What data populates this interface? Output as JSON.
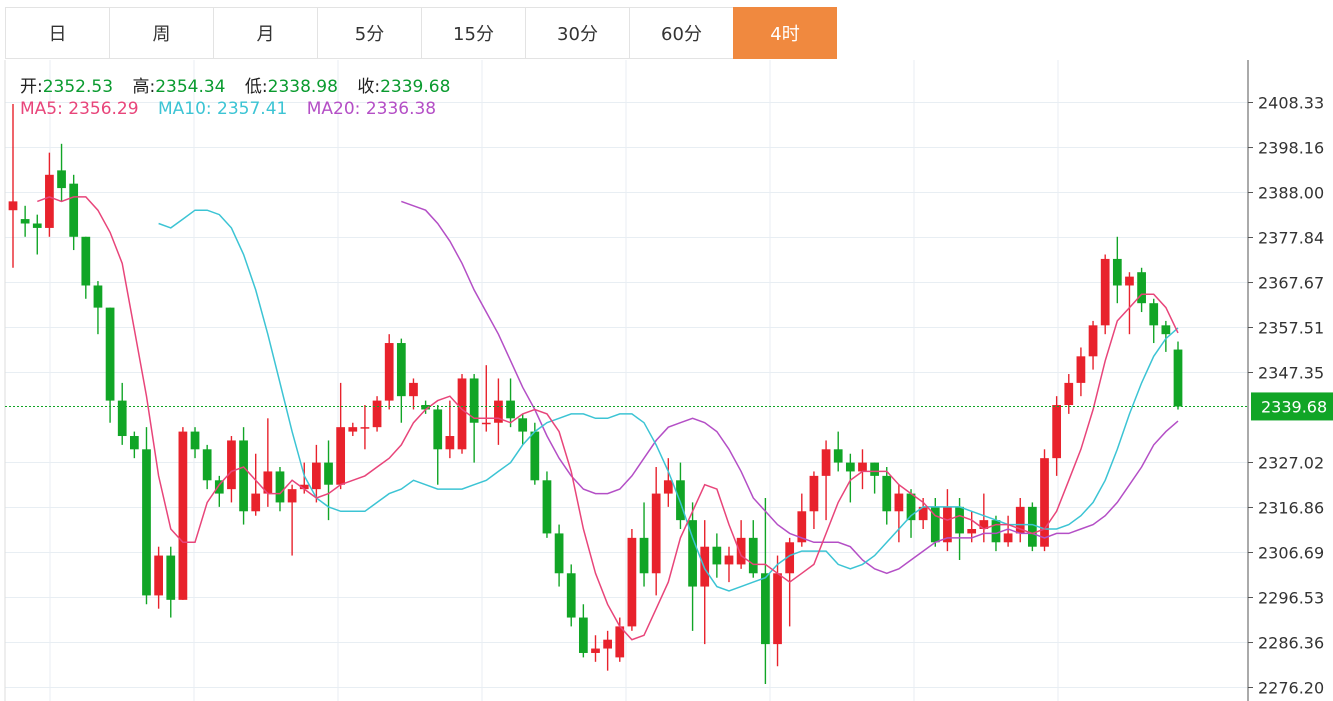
{
  "tabs": [
    {
      "label": "日"
    },
    {
      "label": "周"
    },
    {
      "label": "月"
    },
    {
      "label": "5分"
    },
    {
      "label": "15分"
    },
    {
      "label": "30分"
    },
    {
      "label": "60分"
    },
    {
      "label": "4时",
      "active": true
    }
  ],
  "info": {
    "open_label": "开:",
    "open": "2352.53",
    "high_label": "高:",
    "high": "2354.34",
    "low_label": "低:",
    "low": "2338.98",
    "close_label": "收:",
    "close": "2339.68",
    "ma5_label": "MA5:",
    "ma5": "2356.29",
    "ma10_label": "MA10:",
    "ma10": "2357.41",
    "ma20_label": "MA20:",
    "ma20": "2336.38"
  },
  "colors": {
    "up": "#e8222c",
    "down": "#11a526",
    "ma5": "#e8457a",
    "ma10": "#3cc4d4",
    "ma20": "#b44fc6",
    "accent": "#f0893f",
    "price_label_bg": "#11a526"
  },
  "chart_data": {
    "type": "candlestick",
    "y_ticks": [
      "2408.33",
      "2398.16",
      "2388.00",
      "2377.84",
      "2367.67",
      "2357.51",
      "2347.35",
      "2327.02",
      "2316.86",
      "2306.69",
      "2296.53",
      "2286.36",
      "2276.20"
    ],
    "ylim": [
      2276.2,
      2408.33
    ],
    "last_price": "2339.68",
    "candles": [
      [
        2384.0,
        2386.0,
        2408.0,
        2371.0
      ],
      [
        2382.0,
        2381.0,
        2385.0,
        2378.0
      ],
      [
        2381.0,
        2380.0,
        2383.0,
        2374.0
      ],
      [
        2380.0,
        2392.0,
        2397.0,
        2378.0
      ],
      [
        2393.0,
        2389.0,
        2399.0,
        2386.0
      ],
      [
        2390.0,
        2378.0,
        2392.0,
        2375.0
      ],
      [
        2378.0,
        2367.0,
        2378.0,
        2364.0
      ],
      [
        2367.0,
        2362.0,
        2368.0,
        2356.0
      ],
      [
        2362.0,
        2341.0,
        2362.0,
        2336.0
      ],
      [
        2341.0,
        2333.0,
        2345.0,
        2331.0
      ],
      [
        2333.0,
        2330.0,
        2334.0,
        2328.0
      ],
      [
        2330.0,
        2297.0,
        2335.0,
        2295.0
      ],
      [
        2297.0,
        2306.0,
        2308.0,
        2294.0
      ],
      [
        2306.0,
        2296.0,
        2308.0,
        2292.0
      ],
      [
        2296.0,
        2334.0,
        2335.0,
        2296.0
      ],
      [
        2334.0,
        2330.0,
        2335.0,
        2328.0
      ],
      [
        2330.0,
        2323.0,
        2331.0,
        2321.0
      ],
      [
        2323.0,
        2320.0,
        2324.0,
        2317.0
      ],
      [
        2321.0,
        2332.0,
        2333.0,
        2318.0
      ],
      [
        2332.0,
        2316.0,
        2335.0,
        2313.0
      ],
      [
        2316.0,
        2320.0,
        2329.0,
        2315.0
      ],
      [
        2320.0,
        2325.0,
        2337.0,
        2317.0
      ],
      [
        2325.0,
        2318.0,
        2326.0,
        2316.0
      ],
      [
        2318.0,
        2321.0,
        2322.0,
        2306.0
      ],
      [
        2321.0,
        2322.0,
        2327.0,
        2320.0
      ],
      [
        2321.0,
        2327.0,
        2331.0,
        2318.0
      ],
      [
        2327.0,
        2322.0,
        2332.0,
        2314.0
      ],
      [
        2322.0,
        2335.0,
        2345.0,
        2321.0
      ],
      [
        2334.0,
        2335.0,
        2336.0,
        2333.0
      ],
      [
        2335.0,
        2335.0,
        2340.0,
        2330.0
      ],
      [
        2335.0,
        2341.0,
        2342.0,
        2334.0
      ],
      [
        2341.0,
        2354.0,
        2356.0,
        2339.0
      ],
      [
        2354.0,
        2342.0,
        2355.0,
        2336.0
      ],
      [
        2342.0,
        2345.0,
        2346.0,
        2339.0
      ],
      [
        2340.0,
        2339.0,
        2341.0,
        2338.0
      ],
      [
        2339.0,
        2330.0,
        2340.0,
        2322.0
      ],
      [
        2330.0,
        2333.0,
        2341.0,
        2328.0
      ],
      [
        2330.0,
        2346.0,
        2347.0,
        2329.0
      ],
      [
        2346.0,
        2336.0,
        2347.0,
        2327.0
      ],
      [
        2336.0,
        2336.0,
        2349.0,
        2334.0
      ],
      [
        2336.0,
        2341.0,
        2346.0,
        2331.0
      ],
      [
        2341.0,
        2337.0,
        2346.0,
        2335.0
      ],
      [
        2337.0,
        2334.0,
        2338.0,
        2331.0
      ],
      [
        2334.0,
        2323.0,
        2336.0,
        2322.0
      ],
      [
        2323.0,
        2311.0,
        2325.0,
        2310.0
      ],
      [
        2311.0,
        2302.0,
        2313.0,
        2299.0
      ],
      [
        2302.0,
        2292.0,
        2304.0,
        2290.0
      ],
      [
        2292.0,
        2284.0,
        2295.0,
        2283.0
      ],
      [
        2284.0,
        2285.0,
        2288.0,
        2282.0
      ],
      [
        2285.0,
        2287.0,
        2289.0,
        2280.0
      ],
      [
        2283.0,
        2290.0,
        2292.0,
        2282.0
      ],
      [
        2290.0,
        2310.0,
        2312.0,
        2289.0
      ],
      [
        2310.0,
        2302.0,
        2318.0,
        2299.0
      ],
      [
        2302.0,
        2320.0,
        2326.0,
        2297.0
      ],
      [
        2320.0,
        2323.0,
        2328.0,
        2317.0
      ],
      [
        2323.0,
        2314.0,
        2327.0,
        2312.0
      ],
      [
        2314.0,
        2299.0,
        2318.0,
        2289.0
      ],
      [
        2299.0,
        2308.0,
        2314.0,
        2286.0
      ],
      [
        2308.0,
        2304.0,
        2311.0,
        2301.0
      ],
      [
        2304.0,
        2306.0,
        2308.0,
        2300.0
      ],
      [
        2304.0,
        2310.0,
        2314.0,
        2303.0
      ],
      [
        2310.0,
        2302.0,
        2314.0,
        2301.0
      ],
      [
        2302.0,
        2286.0,
        2319.0,
        2277.0
      ],
      [
        2286.0,
        2302.0,
        2306.0,
        2281.0
      ],
      [
        2302.0,
        2309.0,
        2310.0,
        2290.0
      ],
      [
        2309.0,
        2316.0,
        2320.0,
        2308.0
      ],
      [
        2316.0,
        2324.0,
        2325.0,
        2312.0
      ],
      [
        2324.0,
        2330.0,
        2332.0,
        2314.0
      ],
      [
        2330.0,
        2327.0,
        2334.0,
        2325.0
      ],
      [
        2327.0,
        2325.0,
        2329.0,
        2318.0
      ],
      [
        2325.0,
        2327.0,
        2330.0,
        2321.0
      ],
      [
        2327.0,
        2324.0,
        2327.0,
        2320.0
      ],
      [
        2324.0,
        2316.0,
        2326.0,
        2313.0
      ],
      [
        2316.0,
        2320.0,
        2322.0,
        2309.0
      ],
      [
        2320.0,
        2314.0,
        2321.0,
        2310.0
      ],
      [
        2314.0,
        2317.0,
        2319.0,
        2312.0
      ],
      [
        2317.0,
        2309.0,
        2319.0,
        2308.0
      ],
      [
        2309.0,
        2317.0,
        2321.0,
        2307.0
      ],
      [
        2317.0,
        2311.0,
        2319.0,
        2305.0
      ],
      [
        2311.0,
        2312.0,
        2316.0,
        2309.0
      ],
      [
        2312.0,
        2314.0,
        2320.0,
        2309.0
      ],
      [
        2314.0,
        2309.0,
        2315.0,
        2307.0
      ],
      [
        2309.0,
        2311.0,
        2315.0,
        2308.0
      ],
      [
        2311.0,
        2317.0,
        2319.0,
        2309.0
      ],
      [
        2317.0,
        2308.0,
        2318.0,
        2307.0
      ],
      [
        2308.0,
        2328.0,
        2330.0,
        2307.0
      ],
      [
        2328.0,
        2340.0,
        2342.0,
        2324.0
      ],
      [
        2340.0,
        2345.0,
        2347.0,
        2338.0
      ],
      [
        2345.0,
        2351.0,
        2353.0,
        2342.0
      ],
      [
        2351.0,
        2358.0,
        2359.0,
        2348.0
      ],
      [
        2358.0,
        2373.0,
        2374.0,
        2356.0
      ],
      [
        2373.0,
        2367.0,
        2378.0,
        2363.0
      ],
      [
        2367.0,
        2369.0,
        2370.0,
        2356.0
      ],
      [
        2370.0,
        2363.0,
        2371.0,
        2361.0
      ],
      [
        2363.0,
        2358.0,
        2364.0,
        2354.0
      ],
      [
        2358.0,
        2356.0,
        2359.0,
        2352.0
      ],
      [
        2352.53,
        2339.68,
        2354.34,
        2338.98
      ]
    ],
    "ma5": [
      2386.0,
      2387.0,
      2386.0,
      2387.0,
      2387.0,
      2384.0,
      2379.0,
      2372.0,
      2357.0,
      2342.0,
      2324.0,
      2312.0,
      2309.0,
      2309.0,
      2318.0,
      2322.0,
      2325.0,
      2326.0,
      2323.0,
      2320.0,
      2320.0,
      2323.0,
      2321.0,
      2319.0,
      2320.0,
      2322.0,
      2323.0,
      2324.0,
      2326.0,
      2328.0,
      2331.0,
      2336.0,
      2339.0,
      2341.0,
      2342.0,
      2339.0,
      2337.0,
      2337.0,
      2337.0,
      2336.0,
      2338.0,
      2339.0,
      2338.0,
      2334.0,
      2325.0,
      2312.0,
      2302.0,
      2295.0,
      2290.0,
      2287.0,
      2288.0,
      2294.0,
      2300.0,
      2310.0,
      2316.0,
      2322.0,
      2321.0,
      2313.0,
      2306.0,
      2304.0,
      2304.0,
      2302.0,
      2300.0,
      2302.0,
      2304.0,
      2311.0,
      2318.0,
      2323.0,
      2325.0,
      2325.0,
      2325.0,
      2322.0,
      2320.0,
      2318.0,
      2315.0,
      2314.0,
      2315.0,
      2314.0,
      2312.0,
      2313.0,
      2313.0,
      2312.0,
      2311.0,
      2312.0,
      2316.0,
      2323.0,
      2330.0,
      2339.0,
      2350.0,
      2359.0,
      2362.0,
      2365.0,
      2365.0,
      2362.0,
      2356.29
    ],
    "ma10": [
      2381.0,
      2380.0,
      2382.0,
      2384.0,
      2384.0,
      2383.0,
      2380.0,
      2374.0,
      2366.0,
      2356.0,
      2345.0,
      2334.0,
      2324.0,
      2319.0,
      2317.0,
      2316.0,
      2316.0,
      2316.0,
      2318.0,
      2320.0,
      2321.0,
      2323.0,
      2322.0,
      2321.0,
      2321.0,
      2321.0,
      2322.0,
      2323.0,
      2325.0,
      2327.0,
      2331.0,
      2334.0,
      2336.0,
      2337.0,
      2338.0,
      2338.0,
      2337.0,
      2337.0,
      2338.0,
      2338.0,
      2336.0,
      2331.0,
      2325.0,
      2318.0,
      2310.0,
      2303.0,
      2299.0,
      2298.0,
      2299.0,
      2300.0,
      2301.0,
      2304.0,
      2306.0,
      2307.0,
      2307.0,
      2307.0,
      2304.0,
      2303.0,
      2304.0,
      2306.0,
      2309.0,
      2312.0,
      2315.0,
      2317.0,
      2317.0,
      2317.0,
      2317.0,
      2316.0,
      2315.0,
      2314.0,
      2313.0,
      2313.0,
      2313.0,
      2312.0,
      2312.0,
      2313.0,
      2315.0,
      2318.0,
      2323.0,
      2330.0,
      2338.0,
      2345.0,
      2351.0,
      2355.0,
      2357.41
    ],
    "ma20": [
      2386.0,
      2385.0,
      2384.0,
      2381.0,
      2377.0,
      2372.0,
      2366.0,
      2361.0,
      2356.0,
      2350.0,
      2344.0,
      2339.0,
      2333.0,
      2328.0,
      2324.0,
      2321.0,
      2320.0,
      2320.0,
      2321.0,
      2324.0,
      2328.0,
      2332.0,
      2335.0,
      2336.0,
      2337.0,
      2336.0,
      2334.0,
      2330.0,
      2325.0,
      2319.0,
      2316.0,
      2313.0,
      2311.0,
      2310.0,
      2309.0,
      2309.0,
      2309.0,
      2308.0,
      2305.0,
      2303.0,
      2302.0,
      2303.0,
      2305.0,
      2307.0,
      2309.0,
      2310.0,
      2310.0,
      2310.0,
      2311.0,
      2311.0,
      2312.0,
      2311.0,
      2311.0,
      2310.0,
      2311.0,
      2311.0,
      2312.0,
      2313.0,
      2315.0,
      2318.0,
      2322.0,
      2326.0,
      2331.0,
      2334.0,
      2336.38
    ]
  }
}
